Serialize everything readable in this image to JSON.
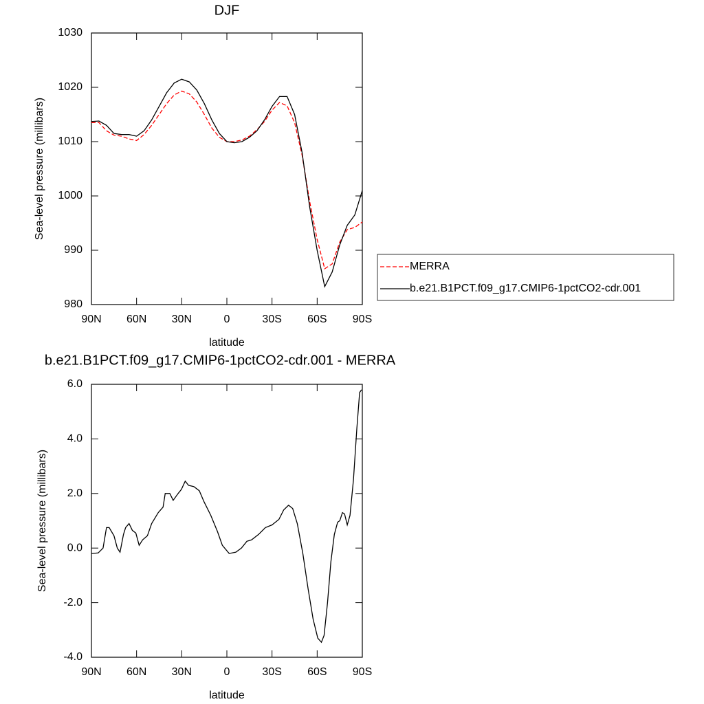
{
  "chart_data": [
    {
      "type": "line",
      "title": "DJF",
      "xlabel": "latitude",
      "ylabel": "Sea-level pressure (millibars)",
      "x": [
        90,
        85,
        80,
        75,
        70,
        65,
        60,
        55,
        50,
        45,
        40,
        35,
        30,
        25,
        20,
        15,
        10,
        5,
        0,
        -5,
        -10,
        -15,
        -20,
        -25,
        -30,
        -35,
        -40,
        -45,
        -50,
        -55,
        -60,
        -65,
        -70,
        -75,
        -80,
        -85,
        -90
      ],
      "series": [
        {
          "name": "MERRA",
          "color": "#ff0000",
          "style": "dashed",
          "values": [
            1013.5,
            1013.5,
            1012,
            1011.2,
            1011,
            1010.5,
            1010.2,
            1011.3,
            1013,
            1015,
            1017,
            1018.6,
            1019.3,
            1018.8,
            1017.3,
            1015,
            1012.5,
            1010.8,
            1010,
            1010,
            1010.3,
            1011,
            1012.2,
            1013.7,
            1015.8,
            1017.2,
            1016.6,
            1013.5,
            1007.5,
            999,
            992,
            986.6,
            987.5,
            991.5,
            993.8,
            994.2,
            995.2
          ]
        },
        {
          "name": "b.e21.B1PCT.f09_g17.CMIP6-1pctCO2-cdr.001",
          "color": "#000000",
          "style": "solid",
          "values": [
            1013.7,
            1013.8,
            1013,
            1011.5,
            1011.3,
            1011.3,
            1011,
            1012,
            1014,
            1016.5,
            1019,
            1020.8,
            1021.5,
            1021,
            1019.5,
            1017,
            1014,
            1011.5,
            1010,
            1009.8,
            1010,
            1010.8,
            1012,
            1014,
            1016.5,
            1018.3,
            1018.3,
            1015,
            1008,
            998,
            990,
            983.3,
            986,
            991,
            994.6,
            996.5,
            1001
          ]
        }
      ],
      "xlim": [
        90,
        -90
      ],
      "xticks": [
        {
          "value": 90,
          "label": "90N"
        },
        {
          "value": 60,
          "label": "60N"
        },
        {
          "value": 30,
          "label": "30N"
        },
        0,
        {
          "value": -30,
          "label": "30S"
        },
        {
          "value": -60,
          "label": "60S"
        },
        {
          "value": -90,
          "label": "90S"
        }
      ],
      "ylim": [
        980,
        1030
      ],
      "yticks": [
        980,
        990,
        1000,
        1010,
        1020,
        1030
      ],
      "legend": "right"
    },
    {
      "type": "line",
      "title": "b.e21.B1PCT.f09_g17.CMIP6-1pctCO2-cdr.001 - MERRA",
      "xlabel": "latitude",
      "ylabel": "Sea-level pressure (millibars)",
      "x": [
        90,
        85.5,
        82.3,
        80,
        78.2,
        75,
        72.8,
        71,
        68.7,
        67.3,
        65,
        62.8,
        60.5,
        58.3,
        56,
        52.8,
        50,
        45.6,
        42.4,
        41,
        37.9,
        35.7,
        32.4,
        30.2,
        27.7,
        25.5,
        21.9,
        18.3,
        15.2,
        10.7,
        6.2,
        3,
        -1.5,
        -6,
        -9.7,
        -13.3,
        -16.4,
        -21,
        -25.6,
        -30,
        -34.6,
        -37.8,
        -41,
        -43.7,
        -46.8,
        -50.5,
        -54,
        -57.3,
        -60.4,
        -62.8,
        -64.6,
        -66.9,
        -69.1,
        -71.4,
        -73.6,
        -75,
        -76.8,
        -78.2,
        -80,
        -81.8,
        -84.1,
        -86.4,
        -88.2,
        -89.5
      ],
      "series": [
        {
          "name": null,
          "color": "#000000",
          "style": "solid",
          "values": [
            -0.2,
            -0.18,
            0,
            0.75,
            0.75,
            0.45,
            0,
            -0.15,
            0.5,
            0.75,
            0.9,
            0.65,
            0.55,
            0.1,
            0.3,
            0.45,
            0.9,
            1.3,
            1.5,
            2.0,
            2.0,
            1.75,
            2.0,
            2.15,
            2.45,
            2.3,
            2.25,
            2.1,
            1.7,
            1.2,
            0.6,
            0.1,
            -0.2,
            -0.15,
            0,
            0.25,
            0.3,
            0.5,
            0.75,
            0.85,
            1.05,
            1.4,
            1.57,
            1.45,
            0.9,
            -0.2,
            -1.5,
            -2.6,
            -3.3,
            -3.45,
            -3.2,
            -2.0,
            -0.5,
            0.5,
            0.95,
            1.0,
            1.3,
            1.25,
            0.85,
            1.2,
            2.5,
            4.4,
            5.7,
            5.8
          ]
        }
      ],
      "xlim": [
        90,
        -90
      ],
      "xticks": [
        {
          "value": 90,
          "label": "90N"
        },
        {
          "value": 60,
          "label": "60N"
        },
        {
          "value": 30,
          "label": "30N"
        },
        0,
        {
          "value": -30,
          "label": "30S"
        },
        {
          "value": -60,
          "label": "60S"
        },
        {
          "value": -90,
          "label": "90S"
        }
      ],
      "ylim": [
        -4,
        6
      ],
      "yticks": [
        {
          "value": -4,
          "label": "-4.0"
        },
        {
          "value": -2,
          "label": "-2.0"
        },
        {
          "value": 0,
          "label": "0.0"
        },
        {
          "value": 2,
          "label": "2.0"
        },
        {
          "value": 4,
          "label": "4.0"
        },
        {
          "value": 6,
          "label": "6.0"
        }
      ]
    }
  ]
}
